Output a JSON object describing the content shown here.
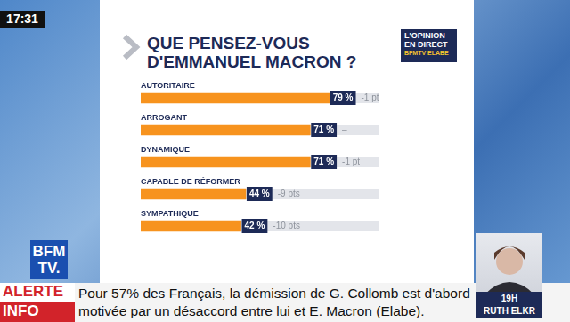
{
  "chart_data": {
    "type": "bar",
    "orientation": "horizontal",
    "title": "QUE PENSEZ-VOUS D'EMMANUEL MACRON ?",
    "categories": [
      "AUTORITAIRE",
      "ARROGANT",
      "DYNAMIQUE",
      "CAPABLE DE RÉFORMER",
      "SYMPATHIQUE"
    ],
    "values": [
      79,
      71,
      71,
      44,
      42
    ],
    "value_labels": [
      "79 %",
      "71 %",
      "71 %",
      "44 %",
      "42 %"
    ],
    "change_labels": [
      "-1 pt",
      "–",
      "-1 pt",
      "-9 pts",
      "-10 pts"
    ],
    "color": "#f7931e",
    "xlim": [
      0,
      100
    ],
    "data_labels": true,
    "tick_labels": false,
    "grid": false
  },
  "screen": {
    "clock": "17:31",
    "badge": [
      "L'OPINION",
      "EN DIRECT",
      "BFMTV ELABE"
    ],
    "channel_logo": [
      "BFM",
      "TV."
    ],
    "ticker": {
      "tag": [
        "ALERTE",
        "INFO"
      ],
      "text": "Pour 57% des Français, la démission de G. Collomb est d'abord motivée par un désaccord entre lui et E. Macron (Elabe)."
    },
    "next_show": {
      "time": "19H",
      "host": "RUTH ELKR"
    }
  }
}
